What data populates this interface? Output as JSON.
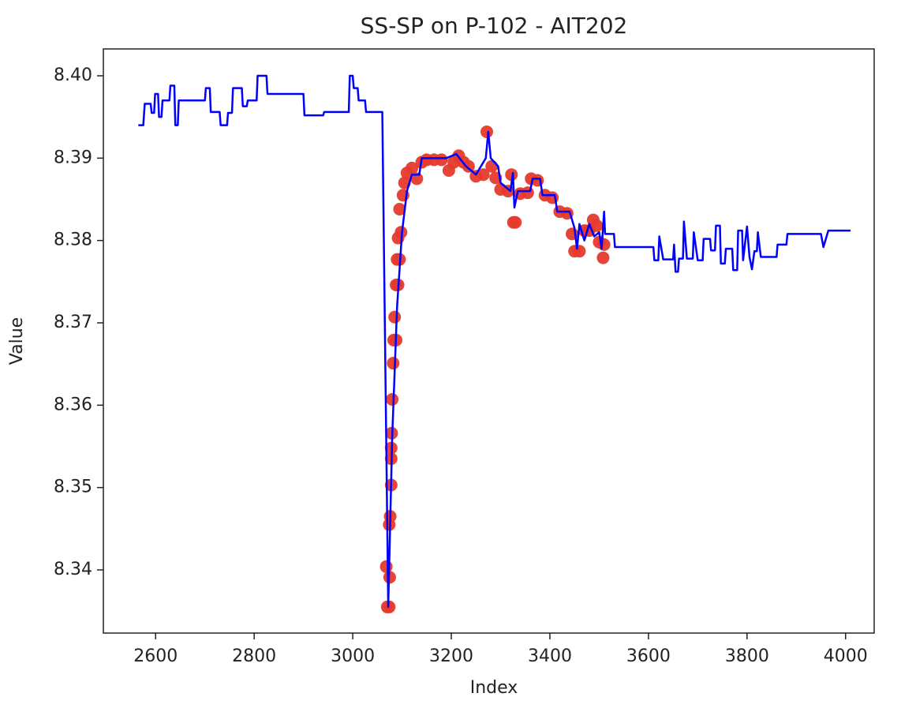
{
  "chart_data": {
    "type": "line",
    "title": "SS-SP on P-102  -  AIT202",
    "x_label": "Index",
    "y_label": "Value",
    "xlim": [
      2494,
      4058
    ],
    "xticks": [
      2600,
      2800,
      3000,
      3200,
      3400,
      3600,
      3800,
      4000
    ],
    "ylim": [
      8.33233,
      8.40326
    ],
    "yticks": [
      8.34,
      8.35,
      8.36,
      8.37,
      8.38,
      8.39,
      {
        "value": 8.4,
        "label": "8.40"
      }
    ],
    "series": [
      {
        "type": "scatter",
        "color": "#e53a2c",
        "x": [
          3068,
          3070,
          3074,
          3075,
          3074,
          3076,
          3078,
          3078,
          3078,
          3079,
          3080,
          3082,
          3083,
          3088,
          3085,
          3088,
          3092,
          3090,
          3095,
          3092,
          3098,
          3095,
          3102,
          3105,
          3110,
          3120,
          3130,
          3140,
          3150,
          3165,
          3180,
          3195,
          3205,
          3215,
          3225,
          3235,
          3250,
          3265,
          3272,
          3282,
          3290,
          3300,
          3315,
          3322,
          3326,
          3330,
          3340,
          3355,
          3362,
          3375,
          3390,
          3405,
          3420,
          3435,
          3445,
          3450,
          3460,
          3470,
          3480,
          3488,
          3495,
          3500,
          3508,
          3510
        ],
        "values": [
          8.3404,
          8.3355,
          8.3355,
          8.3391,
          8.3455,
          8.3465,
          8.3503,
          8.3535,
          8.3548,
          8.3566,
          8.3607,
          8.3651,
          8.3679,
          8.3679,
          8.3707,
          8.3746,
          8.3746,
          8.3777,
          8.3777,
          8.3803,
          8.381,
          8.3838,
          8.3855,
          8.387,
          8.3882,
          8.3888,
          8.3875,
          8.3895,
          8.3898,
          8.3898,
          8.3898,
          8.3885,
          8.3895,
          8.3903,
          8.3895,
          8.389,
          8.3878,
          8.388,
          8.3932,
          8.389,
          8.3876,
          8.3862,
          8.386,
          8.388,
          8.3822,
          8.3822,
          8.3857,
          8.3858,
          8.3875,
          8.3873,
          8.3855,
          8.3852,
          8.3835,
          8.3833,
          8.3808,
          8.3787,
          8.3787,
          8.3812,
          8.3812,
          8.3825,
          8.3818,
          8.3798,
          8.3779,
          8.3795
        ]
      },
      {
        "type": "line",
        "color": "#0000ff",
        "x": [
          2565,
          2575,
          2578,
          2590,
          2592,
          2597,
          2599,
          2605,
          2607,
          2612,
          2614,
          2628,
          2630,
          2638,
          2640,
          2645,
          2647,
          2700,
          2702,
          2710,
          2712,
          2730,
          2732,
          2745,
          2747,
          2755,
          2757,
          2775,
          2777,
          2785,
          2787,
          2805,
          2807,
          2825,
          2827,
          2900,
          2902,
          2940,
          2942,
          2992,
          2994,
          3000,
          3002,
          3010,
          3012,
          3025,
          3027,
          3060,
          3072,
          3080,
          3090,
          3100,
          3110,
          3120,
          3135,
          3140,
          3190,
          3210,
          3230,
          3250,
          3270,
          3275,
          3280,
          3295,
          3300,
          3320,
          3325,
          3328,
          3335,
          3360,
          3365,
          3380,
          3385,
          3410,
          3415,
          3440,
          3450,
          3455,
          3460,
          3470,
          3480,
          3490,
          3500,
          3505,
          3510,
          3512,
          3530,
          3532,
          3610,
          3612,
          3620,
          3622,
          3630,
          3650,
          3652,
          3655,
          3660,
          3662,
          3670,
          3672,
          3678,
          3690,
          3692,
          3700,
          3710,
          3712,
          3725,
          3727,
          3735,
          3737,
          3745,
          3747,
          3755,
          3757,
          3770,
          3772,
          3780,
          3782,
          3790,
          3792,
          3800,
          3805,
          3810,
          3815,
          3820,
          3822,
          3828,
          3860,
          3862,
          3880,
          3882,
          3950,
          3955,
          3965,
          4010
        ],
        "values": [
          8.394,
          8.394,
          8.3966,
          8.3966,
          8.3955,
          8.3955,
          8.3978,
          8.3978,
          8.395,
          8.395,
          8.397,
          8.397,
          8.3988,
          8.3988,
          8.394,
          8.394,
          8.397,
          8.397,
          8.3985,
          8.3985,
          8.3956,
          8.3956,
          8.394,
          8.394,
          8.3955,
          8.3955,
          8.3985,
          8.3985,
          8.3963,
          8.3963,
          8.397,
          8.397,
          8.4,
          8.4,
          8.3978,
          8.3978,
          8.3952,
          8.3952,
          8.3956,
          8.3956,
          8.4,
          8.4,
          8.3985,
          8.3985,
          8.397,
          8.397,
          8.3956,
          8.3956,
          8.3355,
          8.356,
          8.372,
          8.381,
          8.386,
          8.388,
          8.388,
          8.39,
          8.39,
          8.3905,
          8.389,
          8.388,
          8.39,
          8.3932,
          8.39,
          8.389,
          8.387,
          8.386,
          8.3882,
          8.384,
          8.386,
          8.386,
          8.3875,
          8.3875,
          8.3855,
          8.3855,
          8.3835,
          8.3835,
          8.3815,
          8.379,
          8.382,
          8.38,
          8.382,
          8.3805,
          8.381,
          8.379,
          8.3835,
          8.3808,
          8.3808,
          8.3792,
          8.3792,
          8.3776,
          8.3776,
          8.3805,
          8.3777,
          8.3777,
          8.3795,
          8.3762,
          8.3762,
          8.3778,
          8.3778,
          8.3823,
          8.3778,
          8.3778,
          8.381,
          8.3776,
          8.3776,
          8.3802,
          8.3802,
          8.3788,
          8.3788,
          8.3818,
          8.3818,
          8.3772,
          8.3772,
          8.379,
          8.379,
          8.3764,
          8.3764,
          8.3812,
          8.3812,
          8.3776,
          8.3817,
          8.378,
          8.3765,
          8.3787,
          8.3787,
          8.381,
          8.378,
          8.378,
          8.3795,
          8.3795,
          8.3808,
          8.3808,
          8.3792,
          8.3812,
          8.3812
        ]
      }
    ]
  }
}
